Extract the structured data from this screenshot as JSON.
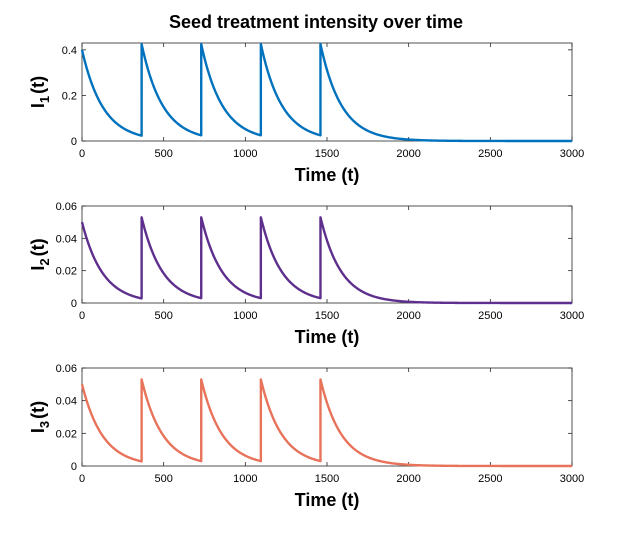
{
  "chart_data": {
    "title": "Seed treatment intensity over time",
    "type": "line",
    "panels": [
      {
        "ylabel_main": "I",
        "ylabel_sub": "1",
        "ylabel_tail": "(t)",
        "xlabel": "Time (t)",
        "xlim": [
          0,
          3000
        ],
        "ylim": [
          0,
          0.43
        ],
        "xticks": [
          0,
          500,
          1000,
          1500,
          2000,
          2500,
          3000
        ],
        "xtick_labels": [
          "0",
          "500",
          "1000",
          "1500",
          "2000",
          "2500",
          "3000"
        ],
        "yticks": [
          0,
          0.2,
          0.4
        ],
        "ytick_labels": [
          "0",
          "0.2",
          "0.4"
        ],
        "color": "#0072BD",
        "series": {
          "name": "I1(t)",
          "applications": [
            0,
            365,
            730,
            1095,
            1460
          ],
          "peak": 0.4,
          "trough_before_reapplication": 0.025,
          "reapplication_peak": 0.425,
          "decay_period": 365,
          "x_end": 3000
        }
      },
      {
        "ylabel_main": "I",
        "ylabel_sub": "2",
        "ylabel_tail": "(t)",
        "xlabel": "Time (t)",
        "xlim": [
          0,
          3000
        ],
        "ylim": [
          0,
          0.06
        ],
        "xticks": [
          0,
          500,
          1000,
          1500,
          2000,
          2500,
          3000
        ],
        "xtick_labels": [
          "0",
          "500",
          "1000",
          "1500",
          "2000",
          "2500",
          "3000"
        ],
        "yticks": [
          0,
          0.02,
          0.04,
          0.06
        ],
        "ytick_labels": [
          "0",
          "0.02",
          "0.04",
          "0.06"
        ],
        "color": "#5E2F8C",
        "series": {
          "name": "I2(t)",
          "applications": [
            0,
            365,
            730,
            1095,
            1460
          ],
          "peak": 0.05,
          "trough_before_reapplication": 0.003,
          "reapplication_peak": 0.053,
          "decay_period": 365,
          "x_end": 3000
        }
      },
      {
        "ylabel_main": "I",
        "ylabel_sub": "3",
        "ylabel_tail": "(t)",
        "xlabel": "Time (t)",
        "xlim": [
          0,
          3000
        ],
        "ylim": [
          0,
          0.06
        ],
        "xticks": [
          0,
          500,
          1000,
          1500,
          2000,
          2500,
          3000
        ],
        "xtick_labels": [
          "0",
          "500",
          "1000",
          "1500",
          "2000",
          "2500",
          "3000"
        ],
        "yticks": [
          0,
          0.02,
          0.04,
          0.06
        ],
        "ytick_labels": [
          "0",
          "0.02",
          "0.04",
          "0.06"
        ],
        "color": "#E8735A",
        "series": {
          "name": "I3(t)",
          "applications": [
            0,
            365,
            730,
            1095,
            1460
          ],
          "peak": 0.05,
          "trough_before_reapplication": 0.003,
          "reapplication_peak": 0.053,
          "decay_period": 365,
          "x_end": 3000
        }
      }
    ]
  }
}
